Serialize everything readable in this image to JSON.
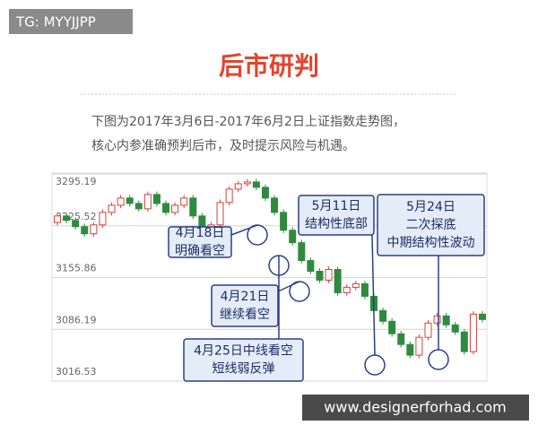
{
  "watermark_top": "TG: MYYJJPP",
  "watermark_bottom": "www.designerforhad.com",
  "heading": "后市研判",
  "description": [
    "下图为2017年3月6日-2017年6月2日上证指数走势图，",
    "核心内参准确预判后市，及时提示风险与机遇。"
  ],
  "chart_data": {
    "type": "candlestick",
    "categories": [
      null,
      null,
      null,
      null,
      null,
      null,
      null,
      null,
      null,
      null,
      null,
      null,
      null,
      null,
      null,
      null,
      null,
      null,
      null,
      null,
      null,
      null,
      null,
      null,
      null,
      null,
      null,
      null,
      null,
      null,
      null,
      null,
      null,
      null,
      null,
      null,
      null,
      null,
      null,
      null,
      null,
      null,
      null,
      null,
      null,
      null,
      null,
      null
    ],
    "open": [
      3230.0,
      3238.7,
      3232.7,
      3224.3,
      3214.7,
      3226.7,
      3243.5,
      3253.1,
      3262.8,
      3255.5,
      3248.3,
      3267.6,
      3255.5,
      3243.5,
      3253.1,
      3262.8,
      3238.7,
      3212.3,
      3226.7,
      3256.8,
      3274.8,
      3282.0,
      3284.4,
      3277.2,
      3262.8,
      3243.5,
      3219.5,
      3202.7,
      3178.7,
      3164.3,
      3152.3,
      3166.7,
      3135.4,
      3142.7,
      3147.5,
      3130.6,
      3111.4,
      3097.0,
      3080.2,
      3065.8,
      3051.4,
      3075.4,
      3094.6,
      3104.2,
      3092.2,
      3082.6,
      3056.2,
      3106.6
    ],
    "high": [
      3242.7,
      3242.7,
      3236.7,
      3228.3,
      3230.7,
      3247.5,
      3257.1,
      3266.8,
      3266.8,
      3259.5,
      3271.6,
      3271.6,
      3259.5,
      3257.1,
      3266.8,
      3266.8,
      3242.7,
      3230.7,
      3260.8,
      3278.8,
      3286.0,
      3288.4,
      3288.4,
      3281.2,
      3266.8,
      3247.5,
      3223.5,
      3206.7,
      3182.7,
      3168.3,
      3170.7,
      3170.7,
      3146.7,
      3151.5,
      3151.5,
      3134.6,
      3115.4,
      3101.0,
      3084.2,
      3069.8,
      3079.4,
      3098.6,
      3108.2,
      3108.2,
      3096.2,
      3086.6,
      3110.6,
      3110.6
    ],
    "low": [
      3226.0,
      3228.7,
      3220.3,
      3210.7,
      3210.7,
      3222.7,
      3239.5,
      3249.1,
      3251.5,
      3244.3,
      3244.3,
      3251.5,
      3239.5,
      3239.5,
      3249.1,
      3234.7,
      3208.3,
      3208.3,
      3222.7,
      3252.8,
      3270.8,
      3278.0,
      3273.2,
      3258.8,
      3239.5,
      3215.5,
      3198.7,
      3174.7,
      3160.3,
      3148.3,
      3148.3,
      3131.4,
      3131.4,
      3138.7,
      3126.6,
      3107.4,
      3093.0,
      3076.2,
      3061.8,
      3047.4,
      3047.4,
      3071.4,
      3090.6,
      3088.2,
      3078.6,
      3052.2,
      3052.2,
      3095.4
    ],
    "close": [
      3238.7,
      3232.7,
      3224.3,
      3214.7,
      3226.7,
      3243.5,
      3253.1,
      3262.8,
      3255.5,
      3248.3,
      3267.6,
      3255.5,
      3243.5,
      3253.1,
      3262.8,
      3238.7,
      3212.3,
      3226.7,
      3256.8,
      3274.8,
      3282.0,
      3284.4,
      3277.2,
      3262.8,
      3243.5,
      3219.5,
      3202.7,
      3178.7,
      3164.3,
      3152.3,
      3166.7,
      3135.4,
      3142.7,
      3147.5,
      3130.6,
      3111.4,
      3097.0,
      3080.2,
      3065.8,
      3051.4,
      3075.4,
      3094.6,
      3104.2,
      3092.2,
      3082.6,
      3056.2,
      3106.6,
      3099.4
    ],
    "up_color": "#d9413a",
    "down_color": "#2e8b3e",
    "ylim": [
      3016.53,
      3295.19
    ],
    "yticks": [
      3295.19,
      3225.52,
      3155.86,
      3086.19,
      3016.53
    ],
    "grid": true,
    "annotations": [
      {
        "lines": [
          "4月18日",
          "明确看空"
        ]
      },
      {
        "lines": [
          "4月21日",
          "继续看空"
        ]
      },
      {
        "lines": [
          "4月25日中线看空",
          "短线弱反弹"
        ]
      },
      {
        "lines": [
          "5月11日",
          "结构性底部"
        ]
      },
      {
        "lines": [
          "5月24日",
          "二次探底",
          "中期结构性波动"
        ]
      }
    ]
  }
}
